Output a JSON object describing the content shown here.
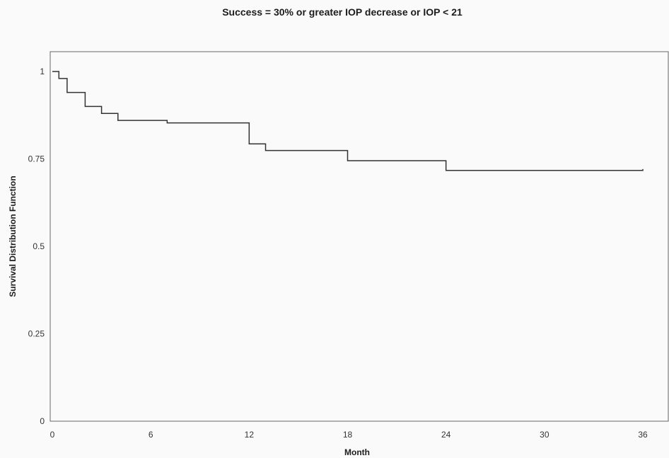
{
  "chart_data": {
    "type": "line",
    "title": "Success = 30% or greater IOP decrease or IOP < 21",
    "xlabel": "Month",
    "ylabel": "Survival Distribution Function",
    "xlim": [
      0,
      36
    ],
    "ylim": [
      0,
      1
    ],
    "x_ticks": [
      "0",
      "6",
      "12",
      "18",
      "24",
      "30",
      "36"
    ],
    "y_ticks": [
      "0",
      "0.25",
      "0.5",
      "0.75",
      "1"
    ],
    "grid": false,
    "legend": "none",
    "line_color": "#333333",
    "series": [
      {
        "step": true,
        "x": [
          0,
          0.4,
          0.9,
          2,
          3,
          4,
          7,
          12,
          13,
          18,
          24,
          36
        ],
        "y": [
          1.0,
          0.98,
          0.94,
          0.9,
          0.88,
          0.86,
          0.853,
          0.793,
          0.774,
          0.745,
          0.717,
          0.721
        ]
      }
    ]
  }
}
